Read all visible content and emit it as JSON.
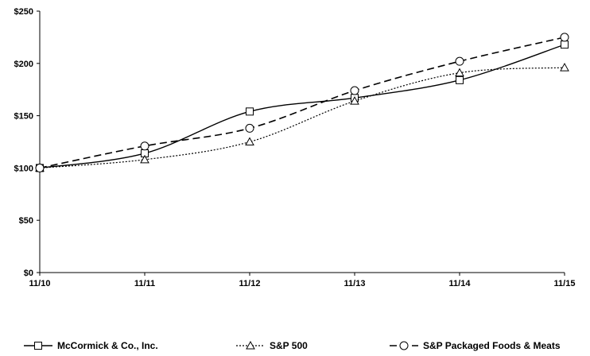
{
  "chart_data": {
    "type": "line",
    "categories": [
      "11/10",
      "11/11",
      "11/12",
      "11/13",
      "11/14",
      "11/15"
    ],
    "y_ticks": [
      "$0",
      "$50",
      "$100",
      "$150",
      "$200",
      "$250"
    ],
    "ylim": [
      0,
      250
    ],
    "grid": false,
    "legend_placement": "bottom",
    "series": [
      {
        "name": "McCormick & Co., Inc.",
        "marker": "square",
        "line_style": "solid",
        "values": [
          100,
          114,
          154,
          167,
          184,
          218
        ]
      },
      {
        "name": "S&P 500",
        "marker": "triangle",
        "line_style": "dotted",
        "values": [
          100,
          108,
          125,
          164,
          191,
          196
        ]
      },
      {
        "name": "S&P Packaged Foods & Meats",
        "marker": "circle",
        "line_style": "dashed",
        "values": [
          100,
          121,
          138,
          174,
          202,
          225
        ]
      }
    ]
  }
}
